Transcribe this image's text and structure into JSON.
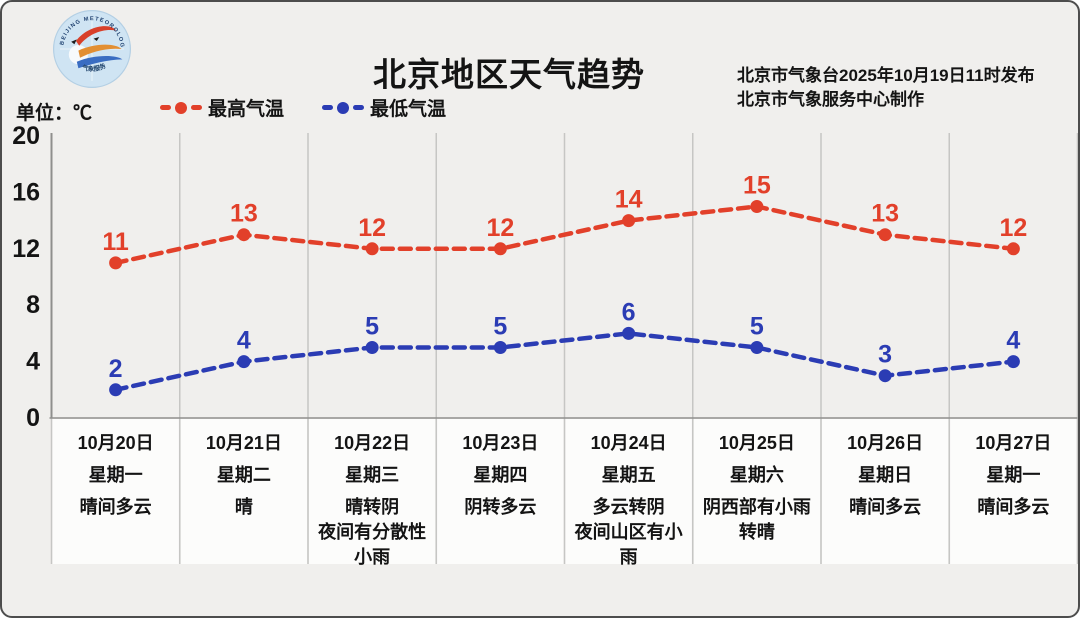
{
  "header": {
    "title": "北京地区天气趋势",
    "publisher_line1": "北京市气象台2025年10月19日11时发布",
    "publisher_line2": "北京市气象服务中心制作",
    "logo": {
      "name": "beijing-meteorological-service-logo",
      "ring_text": "BEIJING METEOROLOGICAL SERVICE",
      "bottom_text": "气象服务"
    }
  },
  "legend": {
    "unit_label": "单位：℃",
    "items": [
      {
        "label": "最高气温",
        "color": "#e2402a"
      },
      {
        "label": "最低气温",
        "color": "#2b3cb4"
      }
    ]
  },
  "colors": {
    "background": "#f0efed",
    "column_background": "#fcfcfb",
    "gridline": "#c6c6c4",
    "axis": "#8f8f8d",
    "text": "#141414",
    "frame_border": "#4d4d4d",
    "max_temp": "#e2402a",
    "min_temp": "#2b3cb4"
  },
  "chart_data": {
    "type": "line",
    "title": "北京地区天气趋势",
    "ylabel": "单位：℃",
    "categories": [
      {
        "date": "10月20日",
        "weekday": "星期一",
        "weather": [
          "晴间多云"
        ]
      },
      {
        "date": "10月21日",
        "weekday": "星期二",
        "weather": [
          "晴"
        ]
      },
      {
        "date": "10月22日",
        "weekday": "星期三",
        "weather": [
          "晴转阴",
          "夜间有分散性",
          "小雨"
        ]
      },
      {
        "date": "10月23日",
        "weekday": "星期四",
        "weather": [
          "阴转多云"
        ]
      },
      {
        "date": "10月24日",
        "weekday": "星期五",
        "weather": [
          "多云转阴",
          "夜间山区有小",
          "雨"
        ]
      },
      {
        "date": "10月25日",
        "weekday": "星期六",
        "weather": [
          "阴西部有小雨",
          "转晴"
        ]
      },
      {
        "date": "10月26日",
        "weekday": "星期日",
        "weather": [
          "晴间多云"
        ]
      },
      {
        "date": "10月27日",
        "weekday": "星期一",
        "weather": [
          "晴间多云"
        ]
      }
    ],
    "series": [
      {
        "name": "最高气温",
        "color": "#e2402a",
        "values": [
          11,
          13,
          12,
          12,
          14,
          15,
          13,
          12
        ]
      },
      {
        "name": "最低气温",
        "color": "#2b3cb4",
        "values": [
          2,
          4,
          5,
          5,
          6,
          5,
          3,
          4
        ]
      }
    ],
    "ylim": [
      0,
      20
    ],
    "yticks": [
      0,
      4,
      8,
      12,
      16,
      20
    ],
    "grid": "vertical-only",
    "line_style": "dashed-with-dots",
    "legend_position": "top-left"
  }
}
